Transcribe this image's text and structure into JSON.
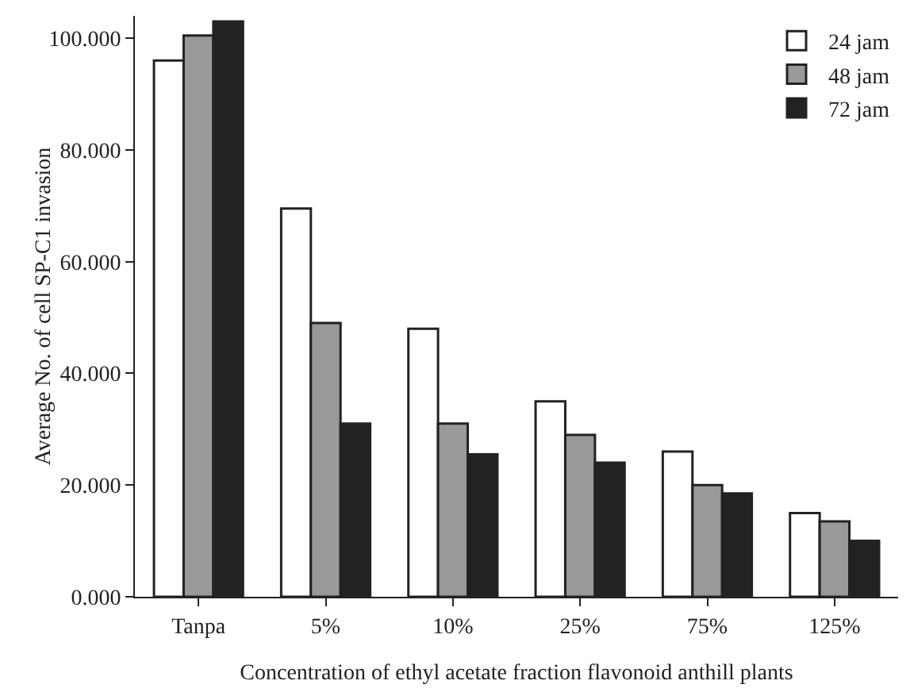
{
  "chart_data": {
    "type": "bar",
    "xlabel": "Concentration of ethyl acetate fraction flavonoid anthill plants",
    "ylabel": "Average No. of cell SP-C1 invasion",
    "categories": [
      "Tanpa",
      "5%",
      "10%",
      "25%",
      "75%",
      "125%"
    ],
    "series": [
      {
        "name": "24 jam",
        "color": "#ffffff",
        "values": [
          96,
          69.5,
          48,
          35,
          26,
          15
        ]
      },
      {
        "name": "48 jam",
        "color": "#999999",
        "values": [
          100.5,
          49,
          31,
          29,
          20,
          13.5
        ]
      },
      {
        "name": "72 jam",
        "color": "#222222",
        "values": [
          103,
          31,
          25.5,
          24,
          18.5,
          10
        ]
      }
    ],
    "ylim": [
      0,
      104
    ],
    "yticks": [
      {
        "value": 0,
        "label": "0.000"
      },
      {
        "value": 20,
        "label": "20.000"
      },
      {
        "value": 40,
        "label": "40.000"
      },
      {
        "value": 60,
        "label": "60.000"
      },
      {
        "value": 80,
        "label": "80.000"
      },
      {
        "value": 100,
        "label": "100.000"
      }
    ],
    "grid": false,
    "legend": "top right"
  }
}
